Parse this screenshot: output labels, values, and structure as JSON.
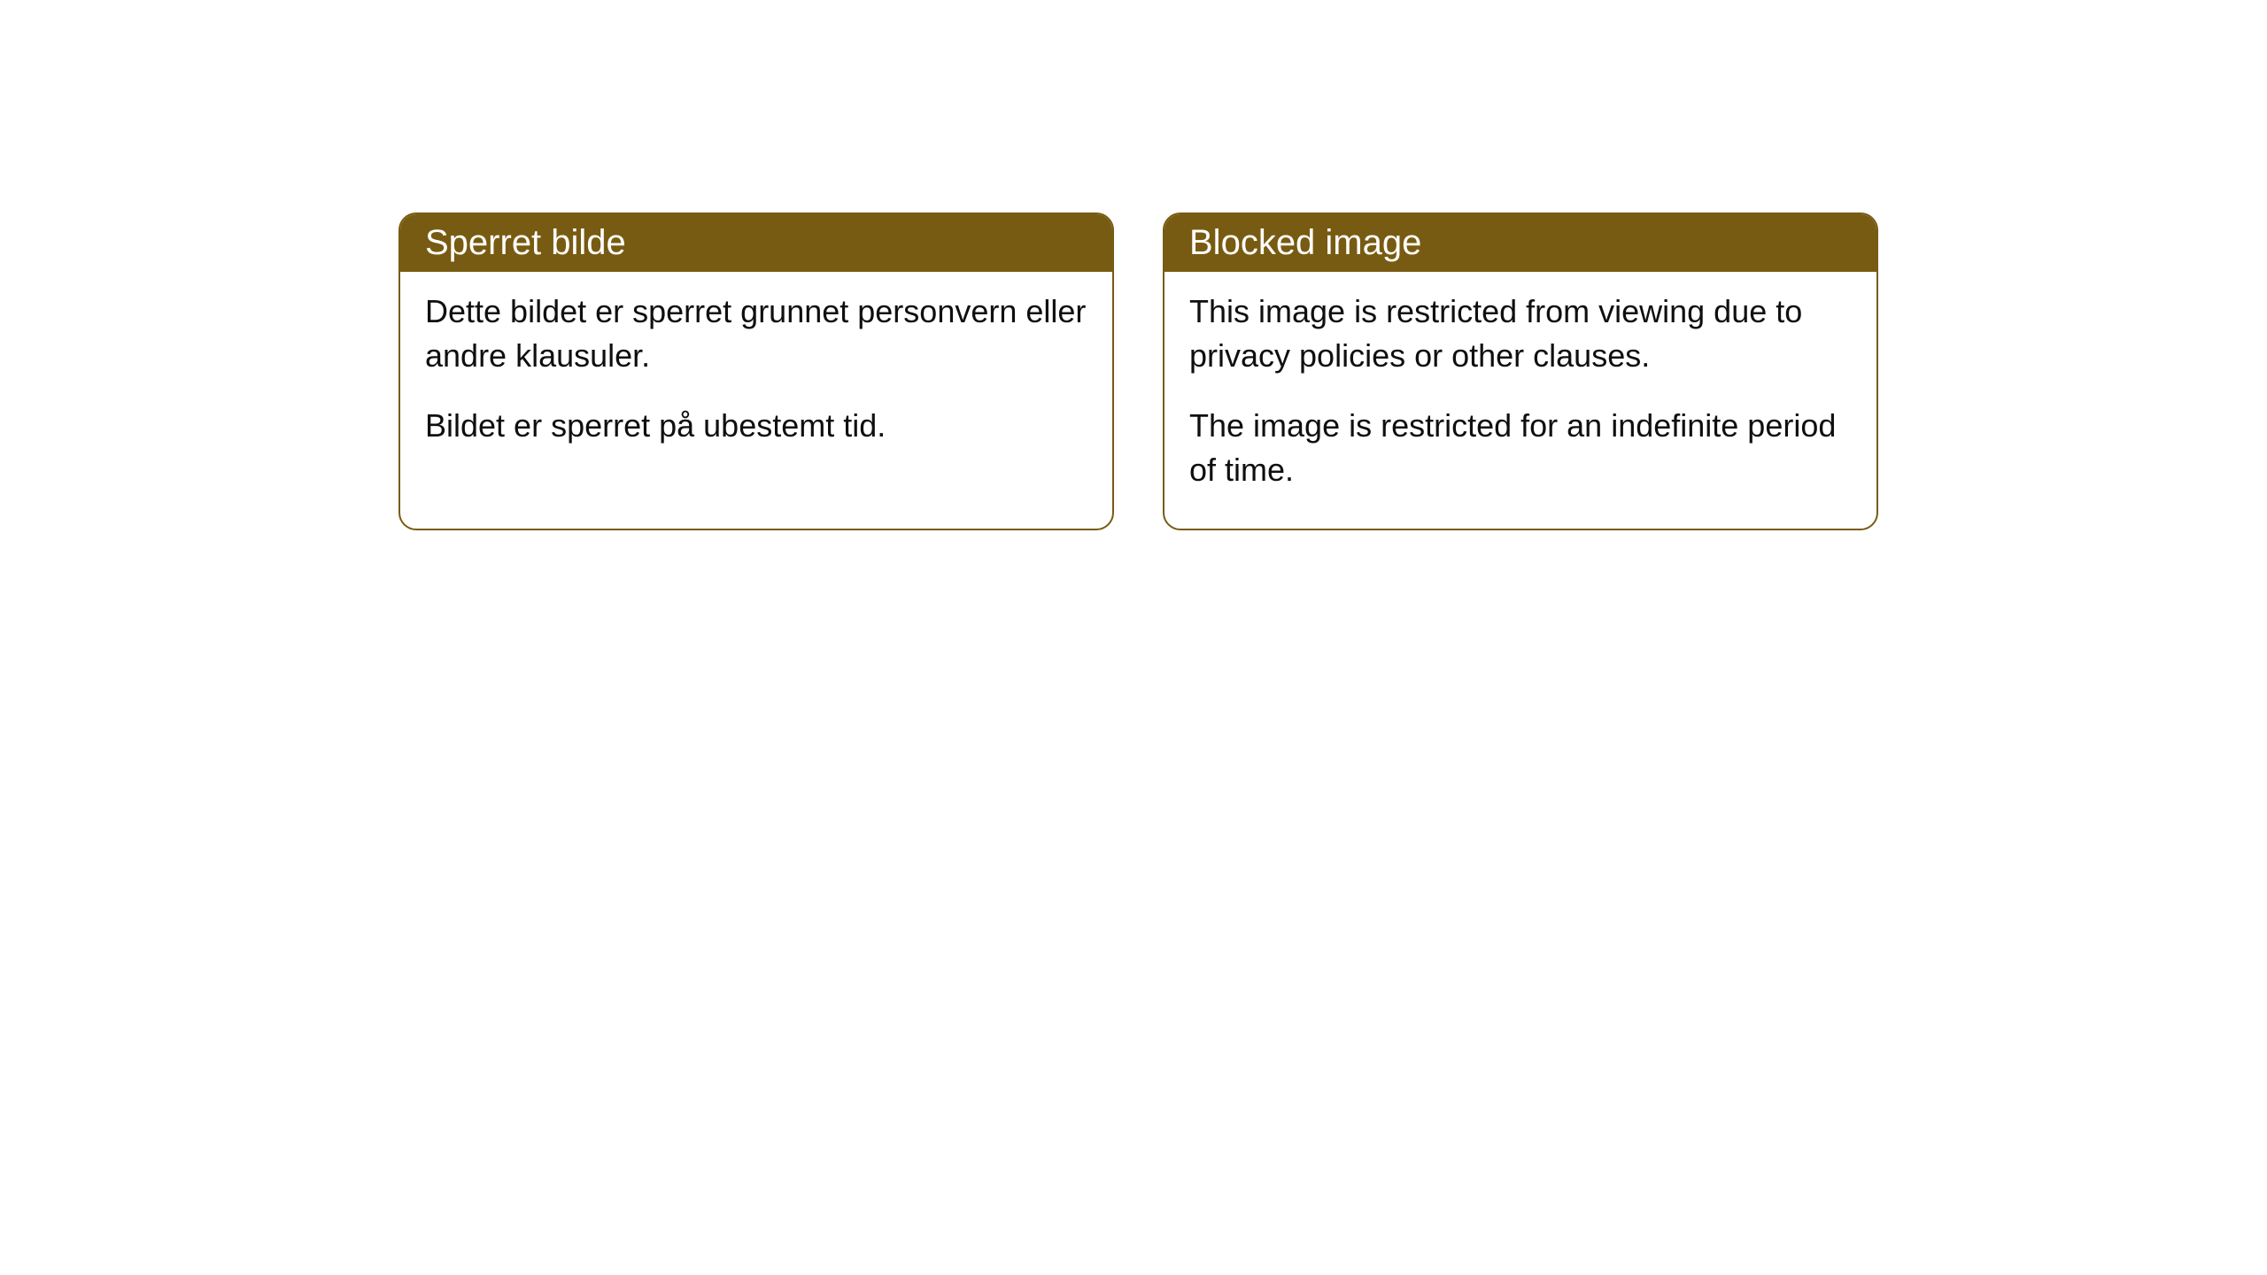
{
  "cards": [
    {
      "title": "Sperret bilde",
      "paragraph1": "Dette bildet er sperret grunnet personvern eller andre klausuler.",
      "paragraph2": "Bildet er sperret på ubestemt tid."
    },
    {
      "title": "Blocked image",
      "paragraph1": "This image is restricted from viewing due to privacy policies or other clauses.",
      "paragraph2": "The image is restricted for an indefinite period of time."
    }
  ],
  "style": {
    "header_background": "#785b12",
    "header_text_color": "#ffffff",
    "border_color": "#785b12",
    "body_text_color": "#0f0f0f",
    "page_background": "#ffffff",
    "border_radius": 20,
    "header_fontsize": 40,
    "body_fontsize": 36
  }
}
